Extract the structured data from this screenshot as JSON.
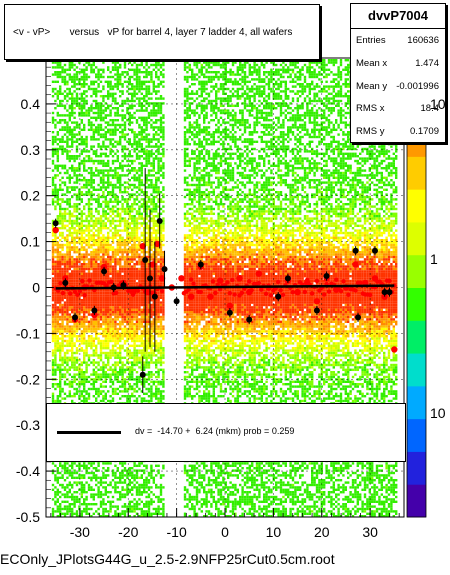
{
  "title": "<v - vP>       versus   vP for barrel 4, layer 7 ladder 4, all wafers",
  "stats": {
    "name": "dvvP7004",
    "rows": [
      {
        "k": "Entries",
        "v": "160636"
      },
      {
        "k": "Mean x",
        "v": "1.474"
      },
      {
        "k": "Mean y",
        "v": "-0.001996"
      },
      {
        "k": "RMS x",
        "v": "18.4"
      },
      {
        "k": "RMS y",
        "v": "0.1709"
      }
    ]
  },
  "fit_text": "dv =  -14.70 +  6.24 (mkm) prob = 0.259",
  "footer": "ECOnly_JPlotsG44G_u_2.5-2.9NFP25rCut0.5cm.root",
  "colorbar": {
    "labels": [
      "10",
      "1",
      "10"
    ]
  },
  "colors": {
    "profile": "#ff0000",
    "points": "#000000",
    "fit": "#000000",
    "grid": "#000000"
  },
  "chart_data": {
    "type": "heatmap",
    "xlim": [
      -37,
      37
    ],
    "ylim": [
      -0.5,
      0.5
    ],
    "xticks": [
      -30,
      -20,
      -10,
      0,
      10,
      20,
      30
    ],
    "yticks": [
      -0.5,
      -0.4,
      -0.3,
      -0.2,
      -0.1,
      0,
      0.1,
      0.2,
      0.3,
      0.4
    ],
    "ytick_labels": [
      "-0.5",
      "-0.4",
      "-0.3",
      "-0.2",
      "-0.1",
      "0",
      "0.1",
      "0.2",
      "0.3",
      "0.4"
    ],
    "xtick_labels": [
      "-30",
      "-20",
      "-10",
      "0",
      "10",
      "20",
      "30"
    ],
    "grid": true,
    "log_z": true,
    "fit": {
      "intercept_mkm": -14.7,
      "slope_mkm": 6.24,
      "prob": 0.259
    },
    "profile_red": [
      {
        "x": -35,
        "y": 0.125
      },
      {
        "x": -33,
        "y": 0.02
      },
      {
        "x": -31,
        "y": -0.07
      },
      {
        "x": -29,
        "y": 0.0
      },
      {
        "x": -27,
        "y": -0.06
      },
      {
        "x": -25,
        "y": 0.045
      },
      {
        "x": -23,
        "y": 0.0
      },
      {
        "x": -21,
        "y": 0.01
      },
      {
        "x": -19,
        "y": -0.01
      },
      {
        "x": -17,
        "y": 0.09
      },
      {
        "x": -16,
        "y": -0.01
      },
      {
        "x": -15,
        "y": 0.05
      },
      {
        "x": -14,
        "y": 0.095
      },
      {
        "x": -13,
        "y": 0.02
      },
      {
        "x": -11,
        "y": 0.0
      },
      {
        "x": -9,
        "y": 0.02
      },
      {
        "x": -7,
        "y": -0.02
      },
      {
        "x": -5,
        "y": 0.045
      },
      {
        "x": -3,
        "y": -0.02
      },
      {
        "x": -1,
        "y": 0.015
      },
      {
        "x": 1,
        "y": -0.04
      },
      {
        "x": 3,
        "y": 0.02
      },
      {
        "x": 5,
        "y": -0.01
      },
      {
        "x": 7,
        "y": 0.03
      },
      {
        "x": 9,
        "y": 0.0
      },
      {
        "x": 11,
        "y": -0.02
      },
      {
        "x": 13,
        "y": 0.015
      },
      {
        "x": 15,
        "y": -0.01
      },
      {
        "x": 17,
        "y": 0.01
      },
      {
        "x": 19,
        "y": -0.03
      },
      {
        "x": 21,
        "y": 0.02
      },
      {
        "x": 23,
        "y": -0.005
      },
      {
        "x": 25,
        "y": 0.0
      },
      {
        "x": 27,
        "y": 0.05
      },
      {
        "x": 29,
        "y": 0.01
      },
      {
        "x": 31,
        "y": 0.02
      },
      {
        "x": 33,
        "y": -0.02
      },
      {
        "x": 35,
        "y": -0.135
      }
    ],
    "profile_black": [
      {
        "x": -35,
        "y": 0.14,
        "err": 0.01
      },
      {
        "x": -33,
        "y": 0.01,
        "err": 0.01
      },
      {
        "x": -31,
        "y": -0.065,
        "err": 0.01
      },
      {
        "x": -27,
        "y": -0.05,
        "err": 0.01
      },
      {
        "x": -25,
        "y": 0.035,
        "err": 0.01
      },
      {
        "x": -23,
        "y": 0.0,
        "err": 0.01
      },
      {
        "x": -21,
        "y": 0.005,
        "err": 0.01
      },
      {
        "x": -17,
        "y": -0.19,
        "err": 0.04
      },
      {
        "x": -16.5,
        "y": 0.06,
        "err": 0.2
      },
      {
        "x": -15.5,
        "y": 0.02,
        "err": 0.15
      },
      {
        "x": -14.5,
        "y": -0.02,
        "err": 0.12
      },
      {
        "x": -13.5,
        "y": 0.145,
        "err": 0.06
      },
      {
        "x": -12.5,
        "y": 0.04,
        "err": 0.04
      },
      {
        "x": -10,
        "y": -0.03,
        "err": 0.01
      },
      {
        "x": -5,
        "y": 0.05,
        "err": 0.01
      },
      {
        "x": 1,
        "y": -0.055,
        "err": 0.01
      },
      {
        "x": 5,
        "y": -0.07,
        "err": 0.01
      },
      {
        "x": 11,
        "y": -0.02,
        "err": 0.01
      },
      {
        "x": 13,
        "y": 0.02,
        "err": 0.01
      },
      {
        "x": 19,
        "y": -0.05,
        "err": 0.01
      },
      {
        "x": 21,
        "y": 0.025,
        "err": 0.01
      },
      {
        "x": 27,
        "y": 0.08,
        "err": 0.01
      },
      {
        "x": 27.5,
        "y": -0.065,
        "err": 0.01
      },
      {
        "x": 31,
        "y": 0.08,
        "err": 0.01
      },
      {
        "x": 33,
        "y": -0.01,
        "err": 0.01
      },
      {
        "x": 34,
        "y": -0.01,
        "err": 0.01
      }
    ]
  }
}
